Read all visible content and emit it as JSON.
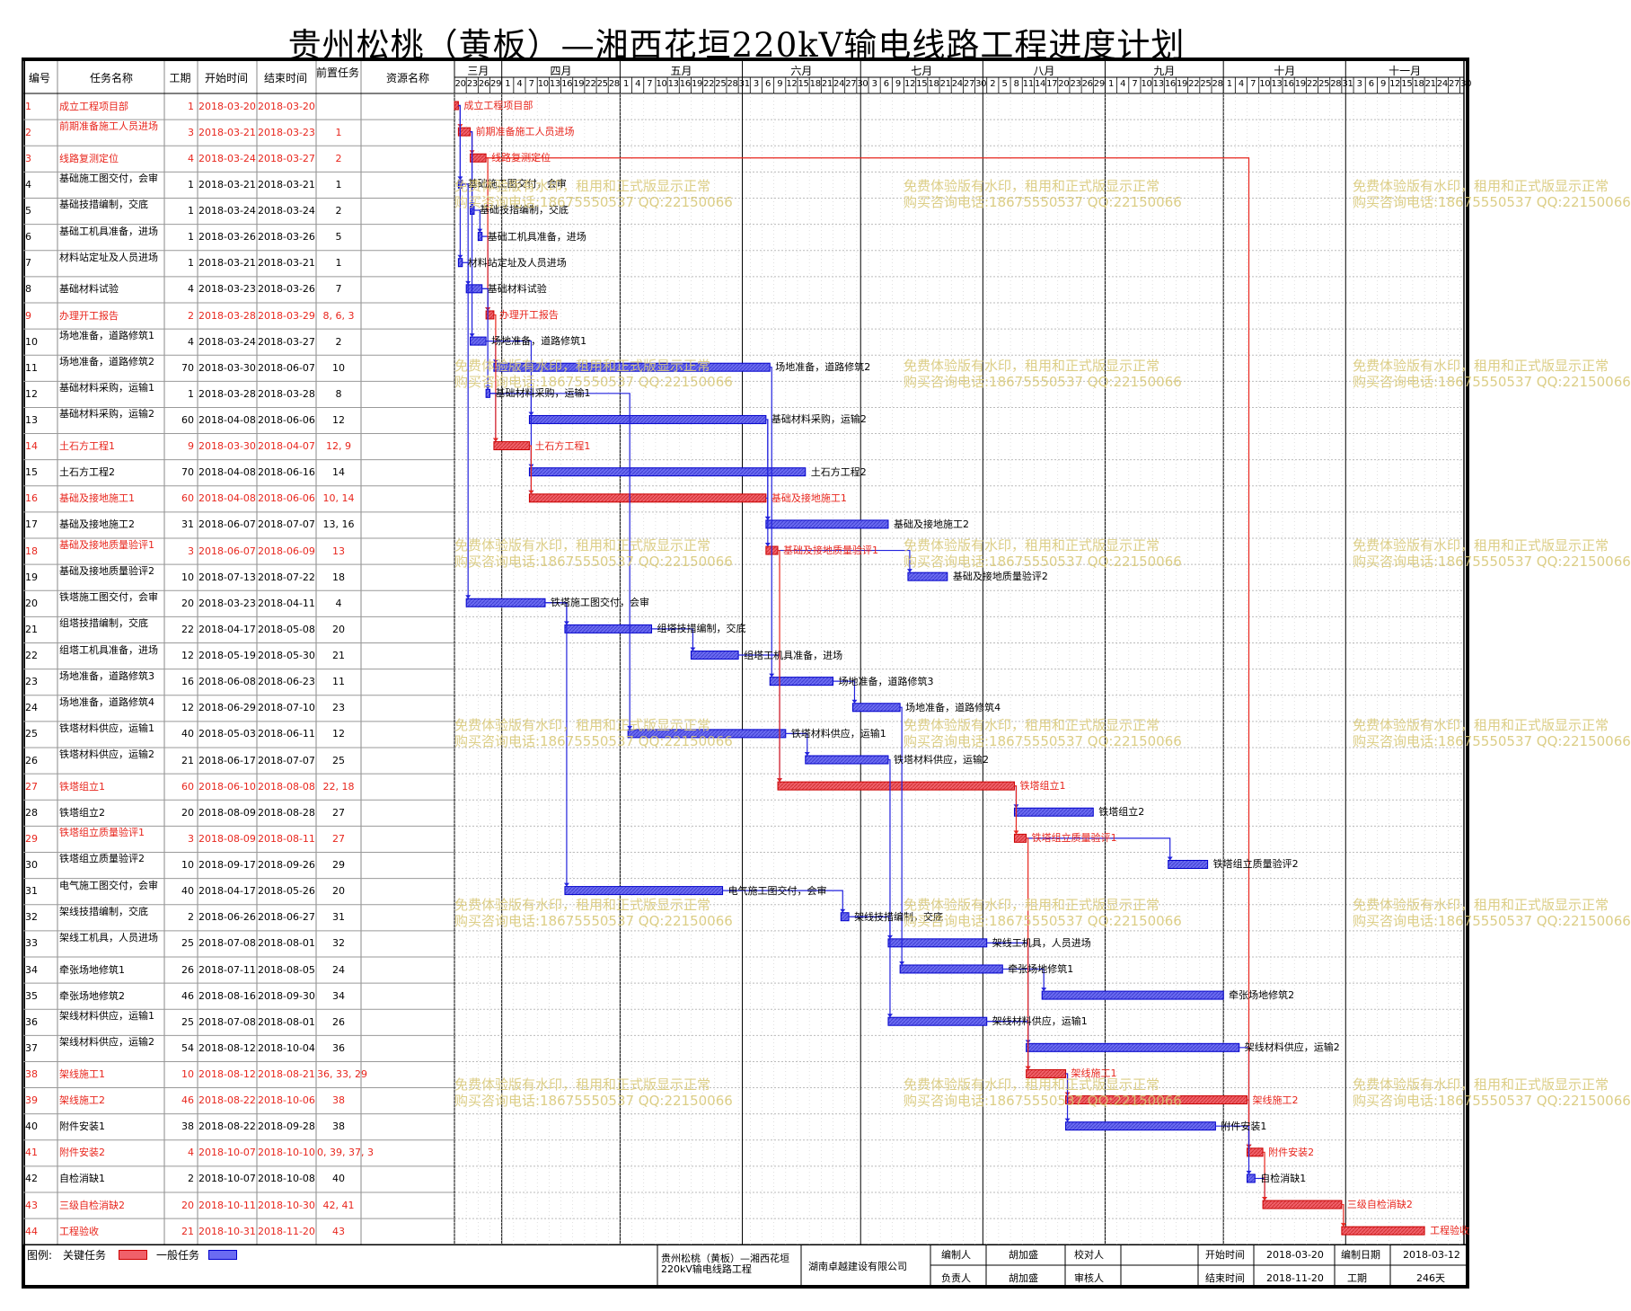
{
  "title": "贵州松桃（黄板）—湘西花垣220kV输电线路工程进度计划",
  "columns": {
    "id": "编号",
    "name": "任务名称",
    "duration": "工期",
    "start": "开始时间",
    "end": "结束时间",
    "pred": "前置任务",
    "resource": "资源名称"
  },
  "months": [
    {
      "label": "三月",
      "start": "2018-03-20",
      "end": "2018-03-31"
    },
    {
      "label": "四月",
      "start": "2018-04-01",
      "end": "2018-04-30"
    },
    {
      "label": "五月",
      "start": "2018-05-01",
      "end": "2018-05-31"
    },
    {
      "label": "六月",
      "start": "2018-06-01",
      "end": "2018-06-30"
    },
    {
      "label": "七月",
      "start": "2018-07-01",
      "end": "2018-07-31"
    },
    {
      "label": "八月",
      "start": "2018-08-01",
      "end": "2018-08-31"
    },
    {
      "label": "九月",
      "start": "2018-09-01",
      "end": "2018-09-30"
    },
    {
      "label": "十月",
      "start": "2018-10-01",
      "end": "2018-10-31"
    },
    {
      "label": "十一月",
      "start": "2018-11-01",
      "end": "2018-11-30"
    }
  ],
  "day_ticks": [
    {
      "date": "2018-03-20",
      "label": "20"
    },
    {
      "date": "2018-03-23",
      "label": "23"
    },
    {
      "date": "2018-03-26",
      "label": "26"
    },
    {
      "date": "2018-03-29",
      "label": "29"
    },
    {
      "date": "2018-04-01",
      "label": "1"
    },
    {
      "date": "2018-04-04",
      "label": "4"
    },
    {
      "date": "2018-04-07",
      "label": "7"
    },
    {
      "date": "2018-04-10",
      "label": "10"
    },
    {
      "date": "2018-04-13",
      "label": "13"
    },
    {
      "date": "2018-04-16",
      "label": "16"
    },
    {
      "date": "2018-04-19",
      "label": "19"
    },
    {
      "date": "2018-04-22",
      "label": "22"
    },
    {
      "date": "2018-04-25",
      "label": "25"
    },
    {
      "date": "2018-04-28",
      "label": "28"
    },
    {
      "date": "2018-05-01",
      "label": "1"
    },
    {
      "date": "2018-05-04",
      "label": "4"
    },
    {
      "date": "2018-05-07",
      "label": "7"
    },
    {
      "date": "2018-05-10",
      "label": "10"
    },
    {
      "date": "2018-05-13",
      "label": "13"
    },
    {
      "date": "2018-05-16",
      "label": "16"
    },
    {
      "date": "2018-05-19",
      "label": "19"
    },
    {
      "date": "2018-05-22",
      "label": "22"
    },
    {
      "date": "2018-05-25",
      "label": "25"
    },
    {
      "date": "2018-05-28",
      "label": "28"
    },
    {
      "date": "2018-05-31",
      "label": "31"
    },
    {
      "date": "2018-06-03",
      "label": "3"
    },
    {
      "date": "2018-06-06",
      "label": "6"
    },
    {
      "date": "2018-06-09",
      "label": "9"
    },
    {
      "date": "2018-06-12",
      "label": "12"
    },
    {
      "date": "2018-06-15",
      "label": "15"
    },
    {
      "date": "2018-06-18",
      "label": "18"
    },
    {
      "date": "2018-06-21",
      "label": "21"
    },
    {
      "date": "2018-06-24",
      "label": "24"
    },
    {
      "date": "2018-06-27",
      "label": "27"
    },
    {
      "date": "2018-06-30",
      "label": "30"
    },
    {
      "date": "2018-07-03",
      "label": "3"
    },
    {
      "date": "2018-07-06",
      "label": "6"
    },
    {
      "date": "2018-07-09",
      "label": "9"
    },
    {
      "date": "2018-07-12",
      "label": "12"
    },
    {
      "date": "2018-07-15",
      "label": "15"
    },
    {
      "date": "2018-07-18",
      "label": "18"
    },
    {
      "date": "2018-07-21",
      "label": "21"
    },
    {
      "date": "2018-07-24",
      "label": "24"
    },
    {
      "date": "2018-07-27",
      "label": "27"
    },
    {
      "date": "2018-07-30",
      "label": "30"
    },
    {
      "date": "2018-08-02",
      "label": "2"
    },
    {
      "date": "2018-08-05",
      "label": "5"
    },
    {
      "date": "2018-08-08",
      "label": "8"
    },
    {
      "date": "2018-08-11",
      "label": "11"
    },
    {
      "date": "2018-08-14",
      "label": "14"
    },
    {
      "date": "2018-08-17",
      "label": "17"
    },
    {
      "date": "2018-08-20",
      "label": "20"
    },
    {
      "date": "2018-08-23",
      "label": "23"
    },
    {
      "date": "2018-08-26",
      "label": "26"
    },
    {
      "date": "2018-08-29",
      "label": "29"
    },
    {
      "date": "2018-09-01",
      "label": "1"
    },
    {
      "date": "2018-09-04",
      "label": "4"
    },
    {
      "date": "2018-09-07",
      "label": "7"
    },
    {
      "date": "2018-09-10",
      "label": "10"
    },
    {
      "date": "2018-09-13",
      "label": "13"
    },
    {
      "date": "2018-09-16",
      "label": "16"
    },
    {
      "date": "2018-09-19",
      "label": "19"
    },
    {
      "date": "2018-09-22",
      "label": "22"
    },
    {
      "date": "2018-09-25",
      "label": "25"
    },
    {
      "date": "2018-09-28",
      "label": "28"
    },
    {
      "date": "2018-10-01",
      "label": "1"
    },
    {
      "date": "2018-10-04",
      "label": "4"
    },
    {
      "date": "2018-10-07",
      "label": "7"
    },
    {
      "date": "2018-10-10",
      "label": "10"
    },
    {
      "date": "2018-10-13",
      "label": "13"
    },
    {
      "date": "2018-10-16",
      "label": "16"
    },
    {
      "date": "2018-10-19",
      "label": "19"
    },
    {
      "date": "2018-10-22",
      "label": "22"
    },
    {
      "date": "2018-10-25",
      "label": "25"
    },
    {
      "date": "2018-10-28",
      "label": "28"
    },
    {
      "date": "2018-10-31",
      "label": "31"
    },
    {
      "date": "2018-11-03",
      "label": "3"
    },
    {
      "date": "2018-11-06",
      "label": "6"
    },
    {
      "date": "2018-11-09",
      "label": "9"
    },
    {
      "date": "2018-11-12",
      "label": "12"
    },
    {
      "date": "2018-11-15",
      "label": "15"
    },
    {
      "date": "2018-11-18",
      "label": "18"
    },
    {
      "date": "2018-11-21",
      "label": "21"
    },
    {
      "date": "2018-11-24",
      "label": "24"
    },
    {
      "date": "2018-11-27",
      "label": "27"
    },
    {
      "date": "2018-11-30",
      "label": "30"
    }
  ],
  "tasks": [
    {
      "id": "1",
      "name": "成立工程项目部",
      "duration": "1",
      "start": "2018-03-20",
      "end": "2018-03-20",
      "pred": "",
      "critical": true
    },
    {
      "id": "2",
      "name": "前期准备施工人员进场",
      "duration": "3",
      "start": "2018-03-21",
      "end": "2018-03-23",
      "pred": "1",
      "critical": true
    },
    {
      "id": "3",
      "name": "线路复测定位",
      "duration": "4",
      "start": "2018-03-24",
      "end": "2018-03-27",
      "pred": "2",
      "critical": true
    },
    {
      "id": "4",
      "name": "基础施工图交付，会审",
      "duration": "1",
      "start": "2018-03-21",
      "end": "2018-03-21",
      "pred": "1",
      "critical": false
    },
    {
      "id": "5",
      "name": "基础技措编制，交底",
      "duration": "1",
      "start": "2018-03-24",
      "end": "2018-03-24",
      "pred": "2",
      "critical": false
    },
    {
      "id": "6",
      "name": "基础工机具准备，进场",
      "duration": "1",
      "start": "2018-03-26",
      "end": "2018-03-26",
      "pred": "5",
      "critical": false
    },
    {
      "id": "7",
      "name": "材料站定址及人员进场",
      "duration": "1",
      "start": "2018-03-21",
      "end": "2018-03-21",
      "pred": "1",
      "critical": false
    },
    {
      "id": "8",
      "name": "基础材料试验",
      "duration": "4",
      "start": "2018-03-23",
      "end": "2018-03-26",
      "pred": "7",
      "critical": false
    },
    {
      "id": "9",
      "name": "办理开工报告",
      "duration": "2",
      "start": "2018-03-28",
      "end": "2018-03-29",
      "pred": "8, 6, 3",
      "critical": true
    },
    {
      "id": "10",
      "name": "场地准备，道路修筑1",
      "duration": "4",
      "start": "2018-03-24",
      "end": "2018-03-27",
      "pred": "2",
      "critical": false
    },
    {
      "id": "11",
      "name": "场地准备，道路修筑2",
      "duration": "70",
      "start": "2018-03-30",
      "end": "2018-06-07",
      "pred": "10",
      "critical": false
    },
    {
      "id": "12",
      "name": "基础材料采购，运输1",
      "duration": "1",
      "start": "2018-03-28",
      "end": "2018-03-28",
      "pred": "8",
      "critical": false
    },
    {
      "id": "13",
      "name": "基础材料采购，运输2",
      "duration": "60",
      "start": "2018-04-08",
      "end": "2018-06-06",
      "pred": "12",
      "critical": false
    },
    {
      "id": "14",
      "name": "土石方工程1",
      "duration": "9",
      "start": "2018-03-30",
      "end": "2018-04-07",
      "pred": "12, 9",
      "critical": true
    },
    {
      "id": "15",
      "name": "土石方工程2",
      "duration": "70",
      "start": "2018-04-08",
      "end": "2018-06-16",
      "pred": "14",
      "critical": false
    },
    {
      "id": "16",
      "name": "基础及接地施工1",
      "duration": "60",
      "start": "2018-04-08",
      "end": "2018-06-06",
      "pred": "10, 14",
      "critical": true
    },
    {
      "id": "17",
      "name": "基础及接地施工2",
      "duration": "31",
      "start": "2018-06-07",
      "end": "2018-07-07",
      "pred": "13, 16",
      "critical": false
    },
    {
      "id": "18",
      "name": "基础及接地质量验评1",
      "duration": "3",
      "start": "2018-06-07",
      "end": "2018-06-09",
      "pred": "13",
      "critical": true
    },
    {
      "id": "19",
      "name": "基础及接地质量验评2",
      "duration": "10",
      "start": "2018-07-13",
      "end": "2018-07-22",
      "pred": "18",
      "critical": false
    },
    {
      "id": "20",
      "name": "铁塔施工图交付，会审",
      "duration": "20",
      "start": "2018-03-23",
      "end": "2018-04-11",
      "pred": "4",
      "critical": false
    },
    {
      "id": "21",
      "name": "组塔技措编制，交底",
      "duration": "22",
      "start": "2018-04-17",
      "end": "2018-05-08",
      "pred": "20",
      "critical": false
    },
    {
      "id": "22",
      "name": "组塔工机具准备，进场",
      "duration": "12",
      "start": "2018-05-19",
      "end": "2018-05-30",
      "pred": "21",
      "critical": false
    },
    {
      "id": "23",
      "name": "场地准备，道路修筑3",
      "duration": "16",
      "start": "2018-06-08",
      "end": "2018-06-23",
      "pred": "11",
      "critical": false
    },
    {
      "id": "24",
      "name": "场地准备，道路修筑4",
      "duration": "12",
      "start": "2018-06-29",
      "end": "2018-07-10",
      "pred": "23",
      "critical": false
    },
    {
      "id": "25",
      "name": "铁塔材料供应，运输1",
      "duration": "40",
      "start": "2018-05-03",
      "end": "2018-06-11",
      "pred": "12",
      "critical": false
    },
    {
      "id": "26",
      "name": "铁塔材料供应，运输2",
      "duration": "21",
      "start": "2018-06-17",
      "end": "2018-07-07",
      "pred": "25",
      "critical": false
    },
    {
      "id": "27",
      "name": "铁塔组立1",
      "duration": "60",
      "start": "2018-06-10",
      "end": "2018-08-08",
      "pred": "22, 18",
      "critical": true
    },
    {
      "id": "28",
      "name": "铁塔组立2",
      "duration": "20",
      "start": "2018-08-09",
      "end": "2018-08-28",
      "pred": "27",
      "critical": false
    },
    {
      "id": "29",
      "name": "铁塔组立质量验评1",
      "duration": "3",
      "start": "2018-08-09",
      "end": "2018-08-11",
      "pred": "27",
      "critical": true
    },
    {
      "id": "30",
      "name": "铁塔组立质量验评2",
      "duration": "10",
      "start": "2018-09-17",
      "end": "2018-09-26",
      "pred": "29",
      "critical": false
    },
    {
      "id": "31",
      "name": "电气施工图交付，会审",
      "duration": "40",
      "start": "2018-04-17",
      "end": "2018-05-26",
      "pred": "20",
      "critical": false
    },
    {
      "id": "32",
      "name": "架线技措编制，交底",
      "duration": "2",
      "start": "2018-06-26",
      "end": "2018-06-27",
      "pred": "31",
      "critical": false
    },
    {
      "id": "33",
      "name": "架线工机具，人员进场",
      "duration": "25",
      "start": "2018-07-08",
      "end": "2018-08-01",
      "pred": "32",
      "critical": false
    },
    {
      "id": "34",
      "name": "牵张场地修筑1",
      "duration": "26",
      "start": "2018-07-11",
      "end": "2018-08-05",
      "pred": "24",
      "critical": false
    },
    {
      "id": "35",
      "name": "牵张场地修筑2",
      "duration": "46",
      "start": "2018-08-16",
      "end": "2018-09-30",
      "pred": "34",
      "critical": false
    },
    {
      "id": "36",
      "name": "架线材料供应，运输1",
      "duration": "25",
      "start": "2018-07-08",
      "end": "2018-08-01",
      "pred": "26",
      "critical": false
    },
    {
      "id": "37",
      "name": "架线材料供应，运输2",
      "duration": "54",
      "start": "2018-08-12",
      "end": "2018-10-04",
      "pred": "36",
      "critical": false
    },
    {
      "id": "38",
      "name": "架线施工1",
      "duration": "10",
      "start": "2018-08-12",
      "end": "2018-08-21",
      "pred": "36, 33, 29",
      "critical": true
    },
    {
      "id": "39",
      "name": "架线施工2",
      "duration": "46",
      "start": "2018-08-22",
      "end": "2018-10-06",
      "pred": "38",
      "critical": true
    },
    {
      "id": "40",
      "name": "附件安装1",
      "duration": "38",
      "start": "2018-08-22",
      "end": "2018-09-28",
      "pred": "38",
      "critical": false
    },
    {
      "id": "41",
      "name": "附件安装2",
      "duration": "4",
      "start": "2018-10-07",
      "end": "2018-10-10",
      "pred": "0, 39, 37, 3",
      "critical": true
    },
    {
      "id": "42",
      "name": "自检消缺1",
      "duration": "2",
      "start": "2018-10-07",
      "end": "2018-10-08",
      "pred": "40",
      "critical": false
    },
    {
      "id": "43",
      "name": "三级自检消缺2",
      "duration": "20",
      "start": "2018-10-11",
      "end": "2018-10-30",
      "pred": "42, 41",
      "critical": true
    },
    {
      "id": "44",
      "name": "工程验收",
      "duration": "21",
      "start": "2018-10-31",
      "end": "2018-11-20",
      "pred": "43",
      "critical": true
    }
  ],
  "watermark": {
    "line1": "免费体验版有水印，租用和正式版显示正常",
    "line2": "购买咨询电话:18675550537 QQ:22150066"
  },
  "legend": {
    "label": "图例:",
    "critical_label": "关键任务",
    "normal_label": "一般任务",
    "critical_color": "#f0606a",
    "normal_color": "#6b6bf2"
  },
  "footer": {
    "project_name": "贵州松桃（黄板）—湘西花垣220kV输电线路工程",
    "company": "湖南卓越建设有限公司",
    "prepared_by_label": "编制人",
    "prepared_by": "胡加盛",
    "checked_by_label": "校对人",
    "checked_by": "",
    "owner_label": "负责人",
    "owner": "胡加盛",
    "reviewed_by_label": "审核人",
    "reviewed_by": "",
    "start_label": "开始时间",
    "start": "2018-03-20",
    "end_label": "结束时间",
    "end": "2018-11-20",
    "made_date_label": "编制日期",
    "made_date": "2018-03-12",
    "duration_label": "工期",
    "duration": "246天"
  },
  "colors": {
    "critical": "#e8261d",
    "critical_bar": "#f0606a",
    "normal_bar": "#6b6bf2",
    "normal_link": "#2222dd",
    "watermark": "#d9c97a"
  }
}
